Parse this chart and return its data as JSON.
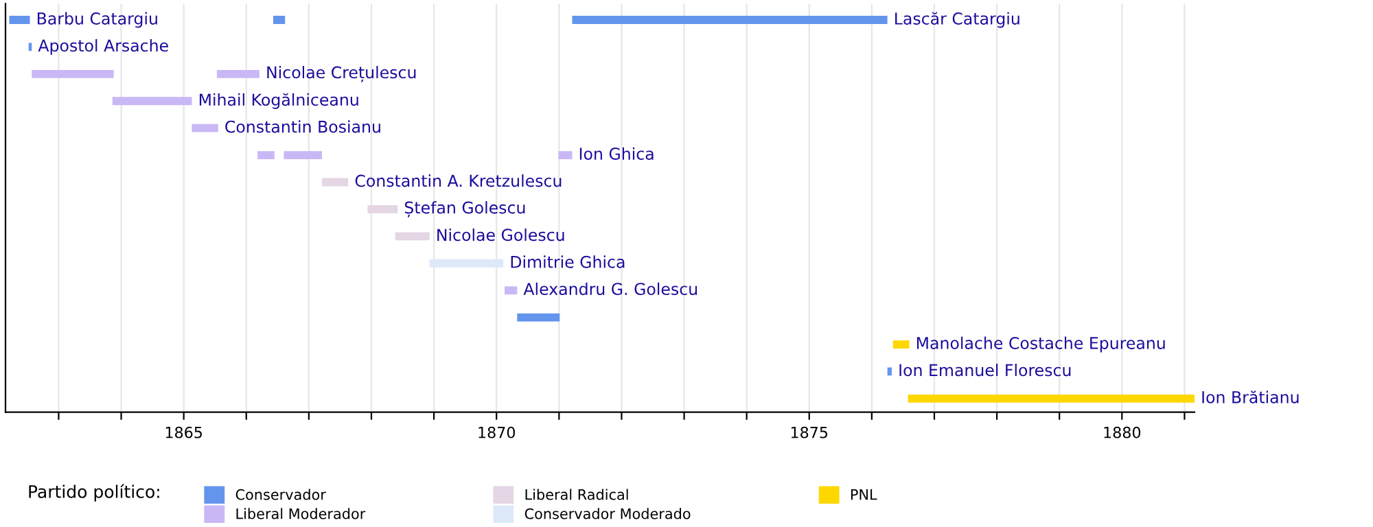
{
  "chart_data": {
    "type": "bar",
    "orientation": "horizontal",
    "legend_title": "Partido político:",
    "categories": [
      null,
      null,
      null,
      null,
      null,
      null,
      null,
      null,
      null,
      null,
      null,
      null,
      null,
      null,
      null
    ],
    "xlim": [
      1862.15,
      1881.16
    ],
    "xticks": [
      {
        "value": 1863,
        "label": null
      },
      {
        "value": 1864,
        "label": null
      },
      1865,
      {
        "value": 1866,
        "label": null
      },
      {
        "value": 1867,
        "label": null
      },
      {
        "value": 1868,
        "label": null
      },
      {
        "value": 1869,
        "label": null
      },
      1870,
      {
        "value": 1871,
        "label": null
      },
      {
        "value": 1872,
        "label": null
      },
      {
        "value": 1873,
        "label": null
      },
      {
        "value": 1874,
        "label": null
      },
      1875,
      {
        "value": 1876,
        "label": null
      },
      {
        "value": 1877,
        "label": null
      },
      {
        "value": 1878,
        "label": null
      },
      {
        "value": 1879,
        "label": null
      },
      1880,
      {
        "value": 1881,
        "label": null
      }
    ],
    "grid": "x",
    "legend": "bottom",
    "tick_labels": "x",
    "series": [
      {
        "name": "Conservador",
        "color": "#6495ed",
        "base": [
          1862.21,
          1862.52,
          null,
          null,
          null,
          null,
          null,
          null,
          null,
          null,
          null,
          1870.33,
          null,
          1876.25,
          null
        ],
        "values": [
          0.33,
          0.05,
          null,
          null,
          null,
          null,
          null,
          null,
          null,
          null,
          null,
          0.68,
          null,
          0.07,
          null
        ],
        "value_labels": [
          "Barbu Catargiu",
          "Apostol Arsache",
          null,
          null,
          null,
          null,
          null,
          null,
          null,
          null,
          null,
          null,
          null,
          "Ion Emanuel Florescu",
          null
        ]
      },
      {
        "name": "Liberal Moderador",
        "color": "#c9b8f5",
        "base": [
          null,
          null,
          1862.57,
          1863.86,
          1865.13,
          1866.18,
          null,
          null,
          null,
          null,
          1870.13,
          null,
          null,
          null,
          null
        ],
        "values": [
          null,
          null,
          1.31,
          1.27,
          0.42,
          0.27,
          null,
          null,
          null,
          null,
          0.2,
          null,
          null,
          null,
          null
        ],
        "value_labels": [
          null,
          null,
          null,
          "Mihail Kogălniceanu",
          "Constantin Bosianu",
          null,
          null,
          null,
          null,
          null,
          "Alexandru G. Golescu",
          null,
          null,
          null,
          null
        ]
      },
      {
        "name": "Liberal Radical",
        "color": "#e4d6e4",
        "base": [
          null,
          null,
          null,
          null,
          null,
          null,
          1867.21,
          1867.94,
          1868.38,
          null,
          null,
          null,
          null,
          null,
          null
        ],
        "values": [
          null,
          null,
          null,
          null,
          null,
          null,
          0.42,
          0.48,
          0.55,
          null,
          null,
          null,
          null,
          null,
          null
        ],
        "value_labels": [
          null,
          null,
          null,
          null,
          null,
          null,
          "Constantin A. Kretzulescu",
          "Ștefan Golescu",
          "Nicolae Golescu",
          null,
          null,
          null,
          null,
          null,
          null
        ]
      },
      {
        "name": "Conservador Moderado",
        "color": "#dde9f8",
        "base": [
          null,
          null,
          null,
          null,
          null,
          null,
          null,
          null,
          null,
          1868.93,
          null,
          null,
          null,
          null,
          null
        ],
        "values": [
          null,
          null,
          null,
          null,
          null,
          null,
          null,
          null,
          null,
          1.18,
          null,
          null,
          null,
          null,
          null
        ],
        "value_labels": [
          null,
          null,
          null,
          null,
          null,
          null,
          null,
          null,
          null,
          "Dimitrie Ghica",
          null,
          null,
          null,
          null,
          null
        ]
      },
      {
        "name": "PNL",
        "color": "#ffd700",
        "base": [
          null,
          null,
          null,
          null,
          null,
          null,
          null,
          null,
          null,
          null,
          null,
          null,
          1876.34,
          null,
          1876.58
        ],
        "values": [
          null,
          null,
          null,
          null,
          null,
          null,
          null,
          null,
          null,
          null,
          null,
          null,
          0.26,
          null,
          4.58
        ],
        "value_labels": [
          null,
          null,
          null,
          null,
          null,
          null,
          null,
          null,
          null,
          null,
          null,
          null,
          "Manolache Costache Epureanu",
          null,
          "Ion Brătianu"
        ]
      },
      {
        "color": "#6495ed",
        "base": [
          1866.43,
          null,
          null,
          null,
          null,
          null,
          null,
          null,
          null,
          null,
          null,
          null,
          null,
          null,
          null
        ],
        "values": [
          0.19,
          null,
          null,
          null,
          null,
          null,
          null,
          null,
          null,
          null,
          null,
          null,
          null,
          null,
          null
        ]
      },
      {
        "color": "#6495ed",
        "base": [
          1871.21,
          null,
          null,
          null,
          null,
          null,
          null,
          null,
          null,
          null,
          null,
          null,
          null,
          null,
          null
        ],
        "values": [
          5.04,
          null,
          null,
          null,
          null,
          null,
          null,
          null,
          null,
          null,
          null,
          null,
          null,
          null,
          null
        ],
        "value_labels": [
          "Lascăr Catargiu",
          null,
          null,
          null,
          null,
          null,
          null,
          null,
          null,
          null,
          null,
          null,
          null,
          null,
          null
        ]
      },
      {
        "color": "#c9b8f5",
        "base": [
          null,
          null,
          1865.53,
          null,
          null,
          1866.6,
          null,
          null,
          null,
          null,
          null,
          null,
          null,
          null,
          null
        ],
        "values": [
          null,
          null,
          0.68,
          null,
          null,
          0.61,
          null,
          null,
          null,
          null,
          null,
          null,
          null,
          null,
          null
        ],
        "value_labels": [
          null,
          null,
          "Nicolae Crețulescu",
          null,
          null,
          null,
          null,
          null,
          null,
          null,
          null,
          null,
          null,
          null,
          null
        ]
      },
      {
        "color": "#c9b8f5",
        "base": [
          null,
          null,
          null,
          null,
          null,
          1870.99,
          null,
          null,
          null,
          null,
          null,
          null,
          null,
          null,
          null
        ],
        "values": [
          null,
          null,
          null,
          null,
          null,
          0.22,
          null,
          null,
          null,
          null,
          null,
          null,
          null,
          null,
          null
        ],
        "value_labels": [
          null,
          null,
          null,
          null,
          null,
          "Ion Ghica",
          null,
          null,
          null,
          null,
          null,
          null,
          null,
          null,
          null
        ]
      }
    ]
  }
}
